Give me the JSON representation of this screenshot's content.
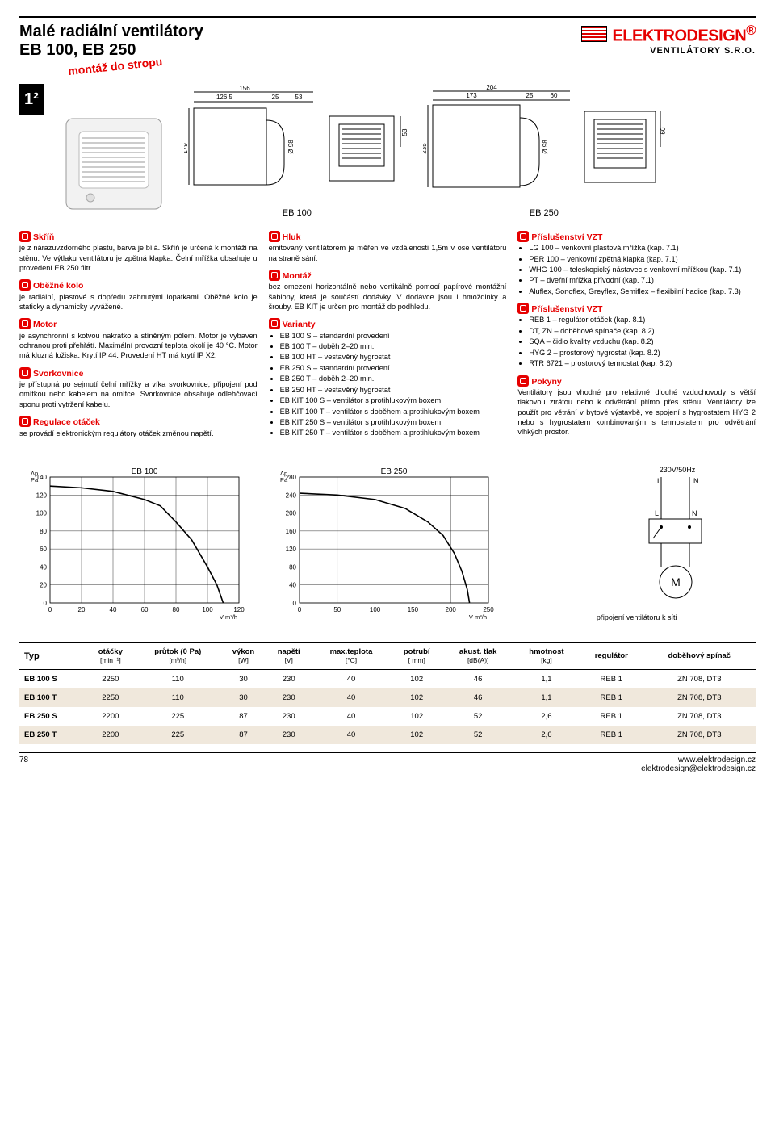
{
  "header": {
    "title_l1": "Malé radiální ventilátory",
    "title_l2": "EB 100, EB 250",
    "brand": "ELEKTRODESIGN",
    "brand_mark": "®",
    "subbrand": "VENTILÁTORY S.R.O."
  },
  "page_number": "1²",
  "badge_text": "montáž do stropu",
  "fig_labels": {
    "eb100": "EB 100",
    "eb250": "EB 250"
  },
  "dims": {
    "eb100": {
      "top1": "126,5",
      "top2": "25",
      "top3": "53",
      "span": "156",
      "h": "179",
      "d": "Ø 98",
      "sq": "53"
    },
    "eb250": {
      "top1": "173",
      "top2": "25",
      "top3": "60",
      "span": "204",
      "h": "235",
      "d": "Ø 98",
      "sq": "60"
    }
  },
  "col1": {
    "s1_h": "Skříň",
    "s1_t": "je z nárazuvzdorného plastu, barva je bílá. Skříň je určená k montáži na stěnu. Ve výtlaku ventilátoru je zpětná klapka. Čelní mřížka obsahuje u provedení EB 250 filtr.",
    "s2_h": "Oběžné kolo",
    "s2_t": "je radiální, plastové s dopředu zahnutými lopatkami. Oběžné kolo je staticky a dynamicky vyvážené.",
    "s3_h": "Motor",
    "s3_t": "je asynchronní s kotvou nakrátko a stíněným pólem. Motor je vybaven ochranou proti přehřátí. Maximální provozní teplota okolí je 40 °C. Motor má kluzná ložiska. Krytí IP 44. Provedení HT má krytí IP X2.",
    "s4_h": "Svorkovnice",
    "s4_t": "je přístupná po sejmutí čelní mřížky a víka svorkovnice, připojení pod omítkou nebo kabelem na omítce. Svorkovnice obsahuje odlehčovací sponu proti vytržení kabelu.",
    "s5_h": "Regulace otáček",
    "s5_t": "se provádí elektronickým regulátory otáček změnou napětí."
  },
  "col2": {
    "s1_h": "Hluk",
    "s1_t": "emitovaný ventilátorem je měřen ve vzdálenosti 1,5m v ose ventilátoru na straně sání.",
    "s2_h": "Montáž",
    "s2_t": "bez omezení horizontálně nebo vertikálně pomocí papírové montážní šablony, která je součástí dodávky. V dodávce jsou i hmoždinky a šrouby. EB KIT je určen pro montáž do podhledu.",
    "s3_h": "Varianty",
    "v1": "EB 100 S – standardní provedení",
    "v2": "EB 100 T – doběh 2–20 min.",
    "v3": "EB 100 HT – vestavěný hygrostat",
    "v4": "EB 250 S – standardní provedení",
    "v5": "EB 250 T – doběh 2–20 min.",
    "v6": "EB 250 HT – vestavěný hygrostat",
    "v7": "EB KIT 100 S – ventilátor s protihlukovým boxem",
    "v8": "EB KIT 100 T – ventilátor s doběhem a protihlukovým boxem",
    "v9": "EB KIT 250 S – ventilátor s protihlukovým boxem",
    "v10": "EB KIT 250 T – ventilátor s doběhem a protihlukovým boxem"
  },
  "col3": {
    "s1_h": "Příslušenství VZT",
    "a1": "LG 100 – venkovní plastová mřížka (kap. 7.1)",
    "a2": "PER 100 – venkovní zpětná klapka (kap. 7.1)",
    "a3": "WHG 100 – teleskopický nástavec s venkovní mřížkou (kap. 7.1)",
    "a4": "PT – dveřní mřížka přívodní (kap. 7.1)",
    "a5": "Aluflex, Sonoflex, Greyflex, Semiflex – flexibilní hadice (kap. 7.3)",
    "s2_h": "Příslušenství VZT",
    "b1": "REB 1 – regulátor otáček (kap. 8.1)",
    "b2": "DT, ZN – doběhové spínače (kap. 8.2)",
    "b3": "SQA – čidlo kvality vzduchu (kap. 8.2)",
    "b4": "HYG 2 – prostorový hygrostat (kap. 8.2)",
    "b5": "RTR 6721 – prostorový termostat (kap. 8.2)",
    "s3_h": "Pokyny",
    "s3_t": "Ventilátory jsou vhodné pro relativně dlouhé vzduchovody s větší tlakovou ztrátou nebo k odvětrání přímo přes stěnu. Ventilátory lze použít pro větrání v bytové výstavbě, ve spojení s hygrostatem HYG 2 nebo s hygrostatem kombinovaným s termostatem pro odvětrání vlhkých prostor."
  },
  "charts": {
    "eb100": {
      "title": "EB 100",
      "y_unit": "Δp\nPa",
      "x_unit": "V m³/h",
      "xlim": [
        0,
        120
      ],
      "xtick": 20,
      "ylim": [
        0,
        140
      ],
      "ytick": 20,
      "line_color": "#000000",
      "line_w": 1.6,
      "grid_color": "#000000",
      "points": [
        [
          0,
          130
        ],
        [
          20,
          128
        ],
        [
          40,
          124
        ],
        [
          60,
          115
        ],
        [
          70,
          108
        ],
        [
          80,
          90
        ],
        [
          90,
          70
        ],
        [
          100,
          40
        ],
        [
          106,
          20
        ],
        [
          110,
          0
        ]
      ]
    },
    "eb250": {
      "title": "EB 250",
      "y_unit": "Δp\nPa",
      "x_unit": "V m³/h",
      "xlim": [
        0,
        250
      ],
      "xtick": 50,
      "ylim": [
        0,
        280
      ],
      "ytick": 40,
      "line_color": "#000000",
      "line_w": 1.6,
      "grid_color": "#000000",
      "points": [
        [
          0,
          244
        ],
        [
          50,
          240
        ],
        [
          100,
          230
        ],
        [
          140,
          210
        ],
        [
          170,
          180
        ],
        [
          190,
          150
        ],
        [
          205,
          110
        ],
        [
          215,
          70
        ],
        [
          222,
          30
        ],
        [
          225,
          0
        ]
      ]
    }
  },
  "wiring": {
    "supply": "230V/50Hz",
    "L": "L",
    "N": "N",
    "M": "M",
    "caption": "připojení ventilátoru k síti"
  },
  "table": {
    "type_h": "Typ",
    "cols": [
      {
        "h": "otáčky",
        "u": "[min⁻¹]"
      },
      {
        "h": "průtok (0 Pa)",
        "u": "[m³/h]"
      },
      {
        "h": "výkon",
        "u": "[W]"
      },
      {
        "h": "napětí",
        "u": "[V]"
      },
      {
        "h": "max.teplota",
        "u": "[°C]"
      },
      {
        "h": "potrubí",
        "u": "[ mm]"
      },
      {
        "h": "akust. tlak",
        "u": "[dB(A)]"
      },
      {
        "h": "hmotnost",
        "u": "[kg]"
      },
      {
        "h": "regulátor",
        "u": ""
      },
      {
        "h": "doběhový spínač",
        "u": ""
      }
    ],
    "rows": [
      {
        "alt": false,
        "typ": "EB 100 S",
        "c": [
          "2250",
          "110",
          "30",
          "230",
          "40",
          "102",
          "46",
          "1,1",
          "REB 1",
          "ZN 708, DT3"
        ]
      },
      {
        "alt": true,
        "typ": "EB 100 T",
        "c": [
          "2250",
          "110",
          "30",
          "230",
          "40",
          "102",
          "46",
          "1,1",
          "REB 1",
          "ZN 708, DT3"
        ]
      },
      {
        "alt": false,
        "typ": "EB 250 S",
        "c": [
          "2200",
          "225",
          "87",
          "230",
          "40",
          "102",
          "52",
          "2,6",
          "REB 1",
          "ZN 708, DT3"
        ]
      },
      {
        "alt": true,
        "typ": "EB 250 T",
        "c": [
          "2200",
          "225",
          "87",
          "230",
          "40",
          "102",
          "52",
          "2,6",
          "REB 1",
          "ZN 708, DT3"
        ]
      }
    ]
  },
  "footer": {
    "page": "78",
    "url": "www.elektrodesign.cz",
    "email": "elektrodesign@elektrodesign.cz"
  }
}
